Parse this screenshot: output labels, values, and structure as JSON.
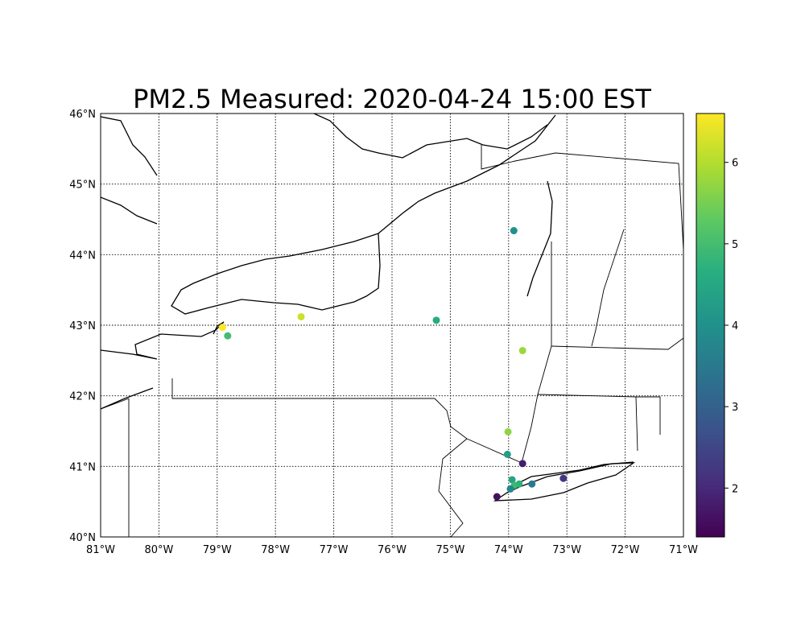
{
  "chart_data": {
    "type": "scatter",
    "title": "PM2.5 Measured: 2020-04-24 15:00 EST",
    "xlim": [
      -81,
      -71
    ],
    "ylim": [
      40,
      46
    ],
    "x_ticks": [
      "81°W",
      "80°W",
      "79°W",
      "78°W",
      "77°W",
      "76°W",
      "75°W",
      "74°W",
      "73°W",
      "72°W",
      "71°W"
    ],
    "y_ticks": [
      "40°N",
      "41°N",
      "42°N",
      "43°N",
      "44°N",
      "45°N",
      "46°N"
    ],
    "grid": true,
    "colormap": "viridis",
    "colorbar": {
      "range": [
        1.4,
        6.6
      ],
      "ticks": [
        "2",
        "3",
        "4",
        "5",
        "6"
      ],
      "placement": "right"
    },
    "points": [
      {
        "lon": -73.91,
        "lat": 44.34,
        "value": 4.0
      },
      {
        "lon": -77.56,
        "lat": 43.12,
        "value": 6.2
      },
      {
        "lon": -75.24,
        "lat": 43.07,
        "value": 4.6
      },
      {
        "lon": -78.91,
        "lat": 42.97,
        "value": 6.6
      },
      {
        "lon": -78.82,
        "lat": 42.85,
        "value": 5.0
      },
      {
        "lon": -73.76,
        "lat": 42.64,
        "value": 5.8
      },
      {
        "lon": -74.01,
        "lat": 41.49,
        "value": 5.7
      },
      {
        "lon": -74.02,
        "lat": 41.17,
        "value": 4.3
      },
      {
        "lon": -73.76,
        "lat": 41.04,
        "value": 1.8
      },
      {
        "lon": -73.06,
        "lat": 40.83,
        "value": 2.2
      },
      {
        "lon": -73.6,
        "lat": 40.75,
        "value": 3.5
      },
      {
        "lon": -73.82,
        "lat": 40.75,
        "value": 4.7
      },
      {
        "lon": -73.94,
        "lat": 40.81,
        "value": 4.4
      },
      {
        "lon": -73.9,
        "lat": 40.73,
        "value": 4.9
      },
      {
        "lon": -73.97,
        "lat": 40.68,
        "value": 3.8
      },
      {
        "lon": -74.2,
        "lat": 40.57,
        "value": 1.6
      }
    ]
  }
}
